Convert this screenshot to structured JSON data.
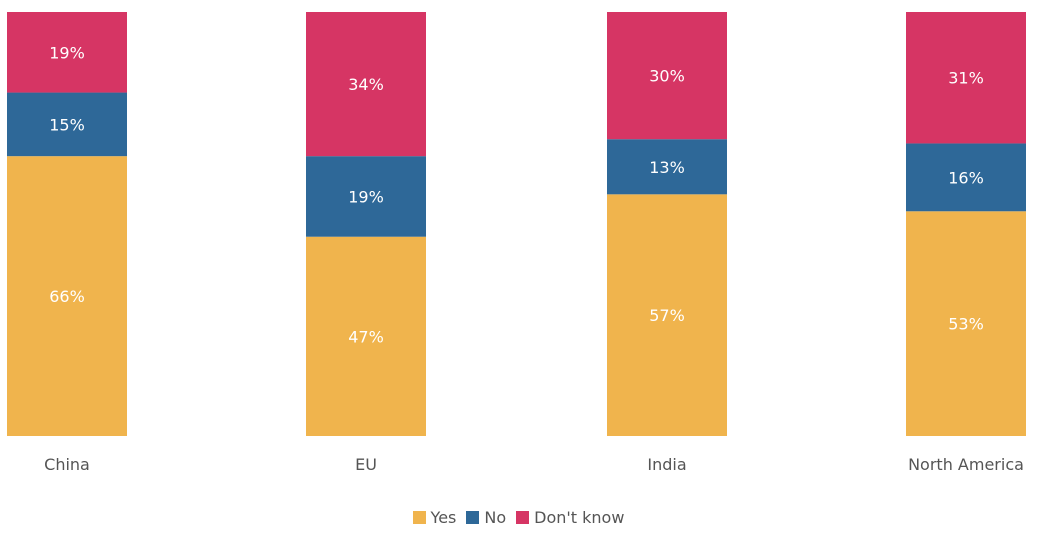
{
  "chart_data": {
    "type": "bar",
    "stacked": true,
    "categories": [
      "China",
      "EU",
      "India",
      "North America"
    ],
    "series": [
      {
        "name": "Yes",
        "color": "#F0B44D",
        "values": [
          66,
          47,
          57,
          53
        ]
      },
      {
        "name": "No",
        "color": "#2E6898",
        "values": [
          15,
          19,
          13,
          16
        ]
      },
      {
        "name": "Don't know",
        "color": "#D63564",
        "values": [
          19,
          34,
          30,
          31
        ]
      }
    ],
    "value_suffix": "%",
    "ylim": [
      0,
      100
    ],
    "legend_position": "bottom-center",
    "grid": false
  }
}
